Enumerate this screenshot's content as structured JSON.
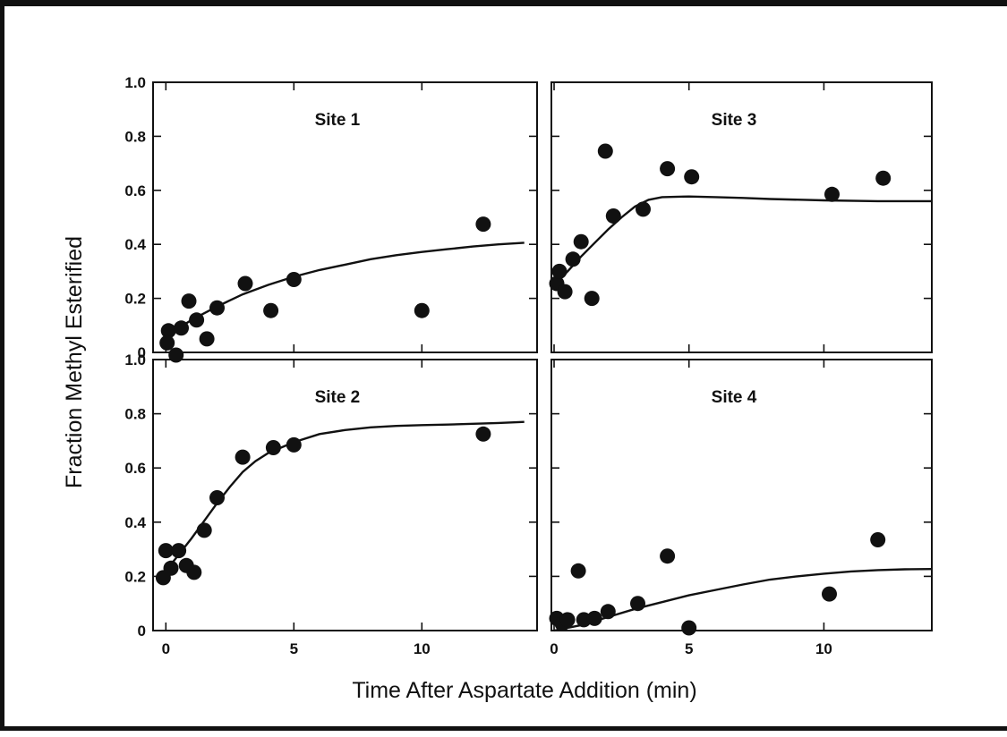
{
  "figure": {
    "border_color": "#111111"
  },
  "chart_data": {
    "type": "scatter",
    "xlabel": "Time After Aspartate Addition (min)",
    "ylabel": "Fraction Methyl Esterified",
    "x_ticks": [
      "0",
      "5",
      "10"
    ],
    "y_ticks_left_top": [
      "0",
      "0.2",
      "0.4",
      "0.6",
      "0.8",
      "1.0"
    ],
    "y_ticks_left_bottom": [
      "0",
      "0.2",
      "0.4",
      "0.6",
      "0.8",
      "1.0"
    ],
    "marker_color": "#111111",
    "line_color": "#111111",
    "grid": false,
    "panels": [
      {
        "title": "Site 1",
        "xlim": [
          -0.5,
          14.5
        ],
        "ylim": [
          0,
          1.0
        ],
        "points": [
          [
            0.1,
            0.08
          ],
          [
            0.05,
            0.035
          ],
          [
            0.4,
            -0.01
          ],
          [
            0.6,
            0.09
          ],
          [
            0.9,
            0.19
          ],
          [
            1.2,
            0.12
          ],
          [
            1.6,
            0.05
          ],
          [
            2.0,
            0.165
          ],
          [
            3.1,
            0.255
          ],
          [
            4.1,
            0.155
          ],
          [
            5.0,
            0.27
          ],
          [
            10.0,
            0.155
          ],
          [
            12.4,
            0.475
          ]
        ],
        "fit": [
          [
            0,
            0.06
          ],
          [
            0.5,
            0.09
          ],
          [
            1,
            0.12
          ],
          [
            1.5,
            0.145
          ],
          [
            2,
            0.17
          ],
          [
            3,
            0.215
          ],
          [
            4,
            0.25
          ],
          [
            5,
            0.28
          ],
          [
            6,
            0.305
          ],
          [
            7,
            0.325
          ],
          [
            8,
            0.345
          ],
          [
            9,
            0.36
          ],
          [
            10,
            0.372
          ],
          [
            11,
            0.382
          ],
          [
            12,
            0.392
          ],
          [
            13,
            0.4
          ],
          [
            14,
            0.406
          ]
        ]
      },
      {
        "title": "Site 3",
        "xlim": [
          -0.1,
          14
        ],
        "ylim": [
          0,
          1.0
        ],
        "points": [
          [
            0.1,
            0.255
          ],
          [
            0.2,
            0.3
          ],
          [
            0.4,
            0.225
          ],
          [
            0.7,
            0.345
          ],
          [
            1.0,
            0.41
          ],
          [
            1.4,
            0.2
          ],
          [
            1.9,
            0.745
          ],
          [
            2.2,
            0.505
          ],
          [
            3.3,
            0.53
          ],
          [
            4.2,
            0.68
          ],
          [
            5.1,
            0.65
          ],
          [
            10.3,
            0.585
          ],
          [
            12.2,
            0.645
          ]
        ],
        "fit": [
          [
            0,
            0.25
          ],
          [
            0.5,
            0.3
          ],
          [
            1,
            0.355
          ],
          [
            1.5,
            0.405
          ],
          [
            2,
            0.455
          ],
          [
            2.5,
            0.5
          ],
          [
            3,
            0.54
          ],
          [
            3.5,
            0.565
          ],
          [
            4,
            0.575
          ],
          [
            5,
            0.577
          ],
          [
            6,
            0.575
          ],
          [
            7,
            0.572
          ],
          [
            8,
            0.568
          ],
          [
            10,
            0.563
          ],
          [
            12,
            0.56
          ],
          [
            14,
            0.56
          ]
        ]
      },
      {
        "title": "Site 2",
        "xlim": [
          -0.5,
          14.5
        ],
        "ylim": [
          0,
          1.0
        ],
        "points": [
          [
            -0.1,
            0.195
          ],
          [
            0.0,
            0.295
          ],
          [
            0.2,
            0.23
          ],
          [
            0.5,
            0.295
          ],
          [
            0.8,
            0.24
          ],
          [
            1.1,
            0.215
          ],
          [
            1.5,
            0.37
          ],
          [
            2.0,
            0.49
          ],
          [
            3.0,
            0.64
          ],
          [
            4.2,
            0.675
          ],
          [
            5.0,
            0.685
          ],
          [
            12.4,
            0.725
          ]
        ],
        "fit": [
          [
            0,
            0.22
          ],
          [
            0.5,
            0.28
          ],
          [
            1,
            0.34
          ],
          [
            1.5,
            0.405
          ],
          [
            2,
            0.47
          ],
          [
            2.5,
            0.53
          ],
          [
            3,
            0.585
          ],
          [
            3.5,
            0.625
          ],
          [
            4,
            0.655
          ],
          [
            5,
            0.695
          ],
          [
            6,
            0.725
          ],
          [
            7,
            0.74
          ],
          [
            8,
            0.75
          ],
          [
            9,
            0.755
          ],
          [
            10,
            0.758
          ],
          [
            11,
            0.76
          ],
          [
            12,
            0.763
          ],
          [
            13,
            0.766
          ],
          [
            14,
            0.77
          ]
        ]
      },
      {
        "title": "Site 4",
        "xlim": [
          -0.1,
          14
        ],
        "ylim": [
          0,
          1.0
        ],
        "points": [
          [
            0.1,
            0.045
          ],
          [
            0.3,
            0.025
          ],
          [
            0.5,
            0.04
          ],
          [
            0.9,
            0.22
          ],
          [
            1.1,
            0.04
          ],
          [
            1.5,
            0.045
          ],
          [
            2.0,
            0.07
          ],
          [
            3.1,
            0.1
          ],
          [
            4.2,
            0.275
          ],
          [
            5.0,
            0.01
          ],
          [
            10.2,
            0.135
          ],
          [
            12.0,
            0.335
          ]
        ],
        "fit": [
          [
            0,
            0.0
          ],
          [
            1,
            0.02
          ],
          [
            2,
            0.05
          ],
          [
            3,
            0.08
          ],
          [
            4,
            0.105
          ],
          [
            5,
            0.13
          ],
          [
            6,
            0.15
          ],
          [
            7,
            0.17
          ],
          [
            8,
            0.188
          ],
          [
            9,
            0.2
          ],
          [
            10,
            0.21
          ],
          [
            11,
            0.218
          ],
          [
            12,
            0.223
          ],
          [
            13,
            0.226
          ],
          [
            14,
            0.227
          ]
        ]
      }
    ]
  }
}
